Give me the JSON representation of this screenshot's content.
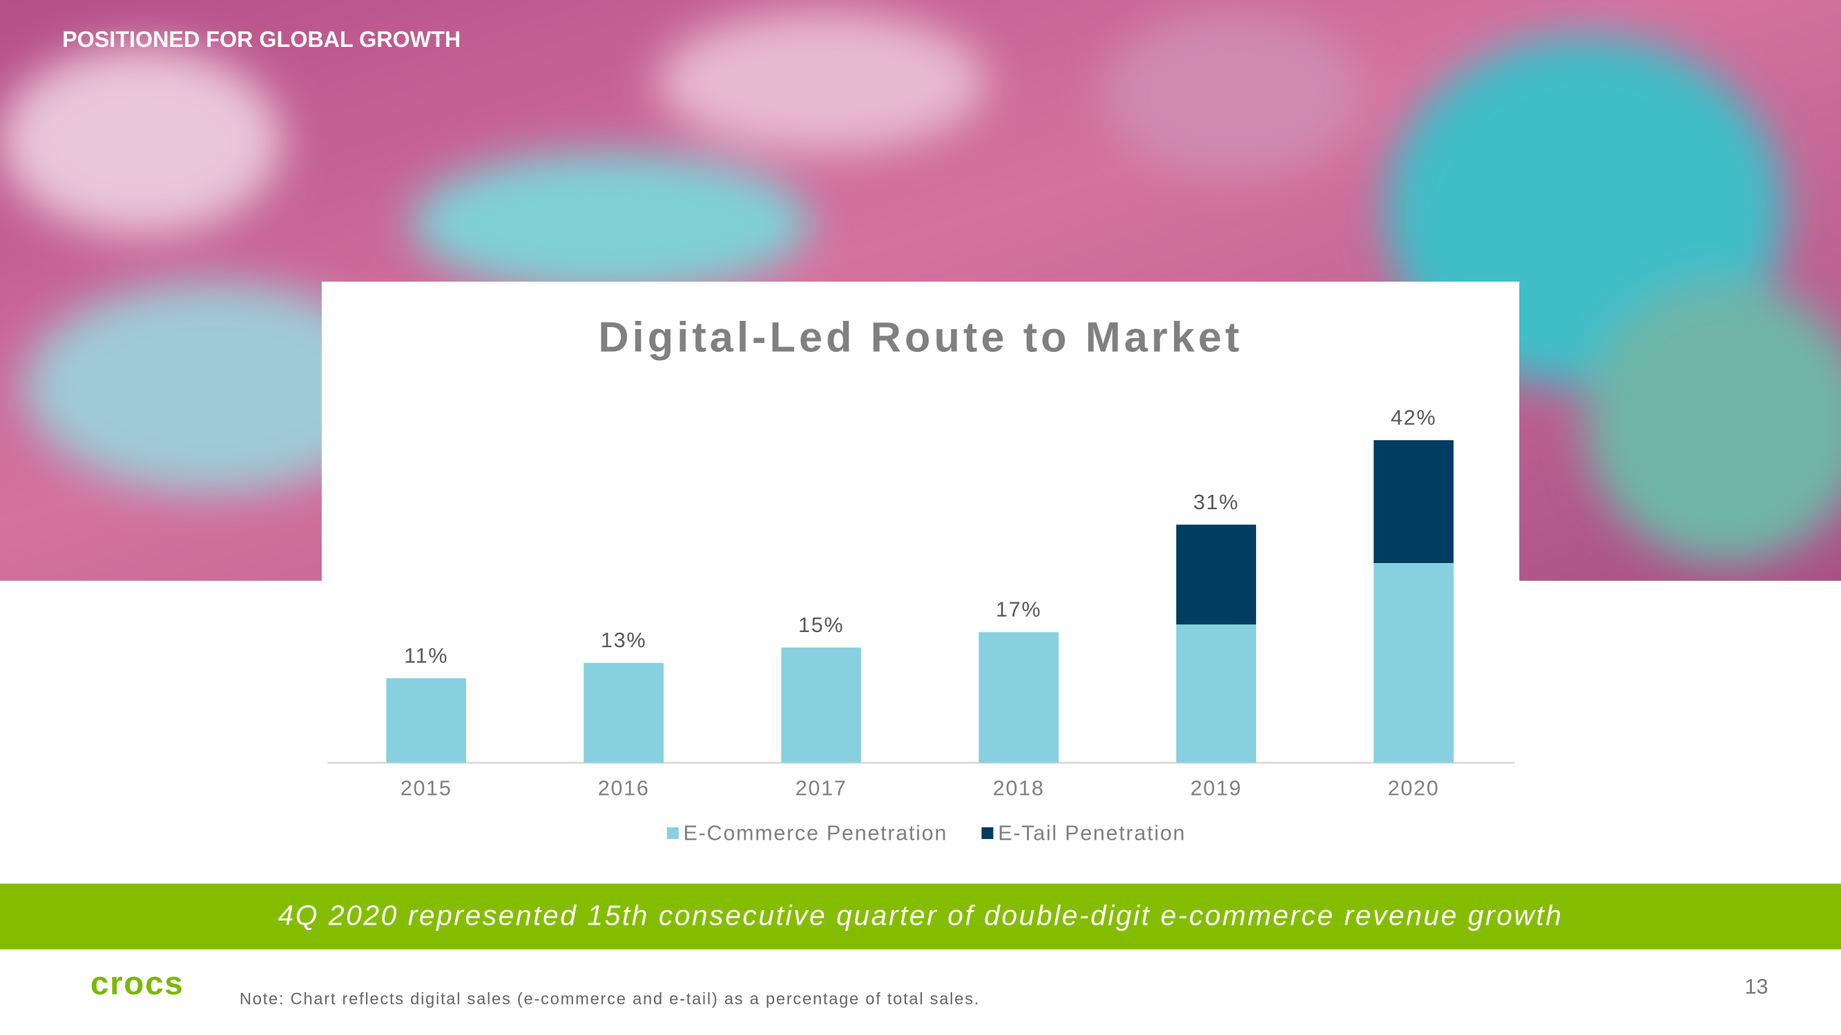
{
  "header": {
    "title": "POSITIONED FOR GLOBAL GROWTH"
  },
  "chart_data": {
    "type": "stacked_bar",
    "title": "Digital-Led Route to Market",
    "categories": [
      "2015",
      "2016",
      "2017",
      "2018",
      "2019",
      "2020"
    ],
    "series": [
      {
        "name": "E-Commerce Penetration",
        "color": "#87d0df",
        "values": [
          11,
          13,
          15,
          17,
          18,
          26
        ]
      },
      {
        "name": "E-Tail Penetration",
        "color": "#003d61",
        "values": [
          null,
          null,
          null,
          null,
          13,
          16
        ]
      }
    ],
    "total_labels": [
      "11%",
      "13%",
      "15%",
      "17%",
      "31%",
      "42%"
    ],
    "legend": "bottom"
  },
  "banner": {
    "text": "4Q 2020 represented 15th consecutive quarter of double-digit e-commerce revenue growth"
  },
  "footer": {
    "logo": "crocs",
    "note": "Note: Chart reflects digital sales (e-commerce and e-tail) as a percentage of total sales.",
    "page": "13"
  }
}
